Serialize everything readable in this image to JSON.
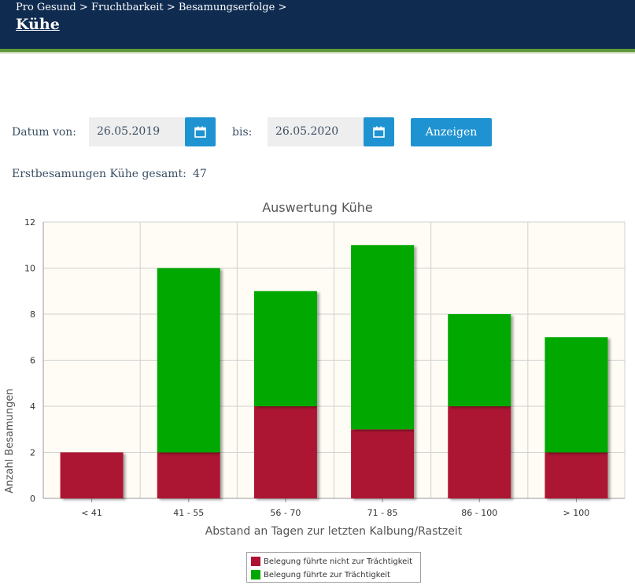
{
  "header": {
    "breadcrumb": [
      "Pro Gesund",
      "Fruchtbarkeit",
      "Besamungserfolge"
    ],
    "breadcrumb_separator": ">",
    "title": "Kühe"
  },
  "filter": {
    "date_from_label": "Datum von:",
    "date_from_value": "26.05.2019",
    "date_to_label": "bis:",
    "date_to_value": "26.05.2020",
    "calendar_icon": "calendar-icon",
    "show_button": "Anzeigen"
  },
  "summary": {
    "label": "Erstbesamungen Kühe gesamt:",
    "value": "47"
  },
  "colors": {
    "header_bg": "#0f2b4f",
    "accent_blue": "#1f93d1",
    "not_pregnant": "#ad1233",
    "pregnant": "#00a800",
    "plot_bg": "#fffcf5"
  },
  "chart_data": {
    "type": "bar",
    "stacked": true,
    "title": "Auswertung Kühe",
    "xlabel": "Abstand an Tagen zur letzten Kalbung/Rastzeit",
    "ylabel": "Anzahl Besamungen",
    "categories": [
      "< 41",
      "41 - 55",
      "56 - 70",
      "71 - 85",
      "86 - 100",
      "> 100"
    ],
    "ylim": [
      0,
      12
    ],
    "yticks": [
      0,
      2,
      4,
      6,
      8,
      10,
      12
    ],
    "grid": true,
    "legend_position": "bottom",
    "series": [
      {
        "name": "Belegung führte nicht zur Trächtigkeit",
        "color": "#ad1233",
        "values": [
          2,
          2,
          4,
          3,
          4,
          2
        ]
      },
      {
        "name": "Belegung führte zur Trächtigkeit",
        "color": "#00a800",
        "values": [
          0,
          8,
          5,
          8,
          4,
          5
        ]
      }
    ]
  }
}
